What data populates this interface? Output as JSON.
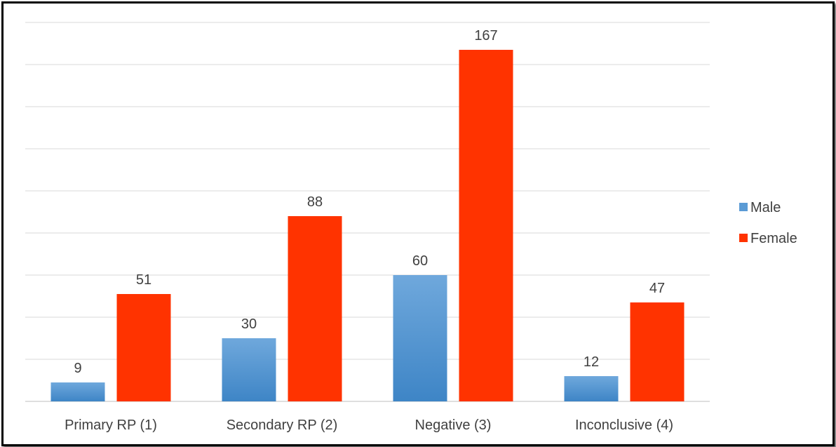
{
  "chart_data": {
    "type": "bar",
    "categories": [
      "Primary RP (1)",
      "Secondary RP (2)",
      "Negative (3)",
      "Inconclusive (4)"
    ],
    "series": [
      {
        "name": "Male",
        "values": [
          9,
          30,
          60,
          12
        ],
        "color": "#5b9bd5"
      },
      {
        "name": "Female",
        "values": [
          51,
          88,
          167,
          47
        ],
        "color": "#ff3300"
      }
    ],
    "ylim": [
      0,
      180
    ],
    "grid": true,
    "legend": "right"
  }
}
